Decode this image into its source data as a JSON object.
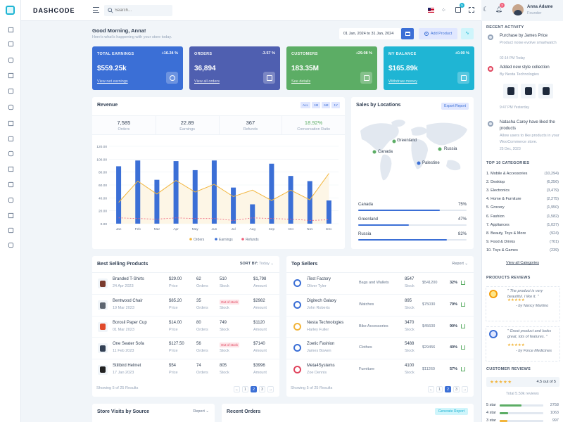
{
  "brand": {
    "logo": "DASHCODE"
  },
  "header": {
    "search_placeholder": "Search...",
    "cart_badge": "5",
    "bell_badge": "2",
    "user_name": "Anna Adame",
    "user_role": "Founder"
  },
  "greeting": {
    "title": "Good Morning, Anna!",
    "subtitle": "Here's what's happening with your store today.",
    "date_range": "01 Jan, 2024 to 31 Jan, 2024",
    "add_product": "Add Product"
  },
  "stats": [
    {
      "label": "TOTAL EARNINGS",
      "pct": "+16.24 %",
      "value": "$559.25k",
      "link": "View net earnings",
      "color": "#3b6fd6"
    },
    {
      "label": "ORDERS",
      "pct": "-3.57 %",
      "value": "36,894",
      "link": "View all orders",
      "color": "#4f5fb0"
    },
    {
      "label": "CUSTOMERS",
      "pct": "+29.08 %",
      "value": "183.35M",
      "link": "See details",
      "color": "#5cad65"
    },
    {
      "label": "MY BALANCE",
      "pct": "+0.00 %",
      "value": "$165.89k",
      "link": "Withdraw money",
      "color": "#1fb5d4"
    }
  ],
  "revenue": {
    "title": "Revenue",
    "ranges": [
      "ALL",
      "1M",
      "6M",
      "1Y"
    ],
    "summary": [
      {
        "value": "7,585",
        "label": "Orders"
      },
      {
        "value": "22.89",
        "label": "Earnings"
      },
      {
        "value": "367",
        "label": "Refunds"
      },
      {
        "value": "18.92%",
        "label": "Conversation Ratio"
      }
    ],
    "legend": [
      "Orders",
      "Earnings",
      "Refunds"
    ]
  },
  "chart_data": {
    "type": "bar",
    "categories": [
      "Jan",
      "Feb",
      "Mar",
      "Apr",
      "May",
      "Jun",
      "Jul",
      "Aug",
      "Sep",
      "Oct",
      "Nov",
      "Dec"
    ],
    "yticks": [
      "120.00",
      "100.00",
      "80.00",
      "60.00",
      "40.00",
      "20.00",
      "0.00"
    ],
    "ylim": [
      0,
      120
    ],
    "series": [
      {
        "name": "Orders",
        "type": "area",
        "values": [
          33,
          66,
          46,
          67,
          49,
          61,
          42,
          52,
          36,
          52,
          37,
          78
        ]
      },
      {
        "name": "Earnings",
        "type": "bar",
        "values": [
          89,
          98,
          68,
          97,
          83,
          98,
          56,
          30,
          93,
          74,
          66,
          36
        ]
      },
      {
        "name": "Refunds",
        "type": "line",
        "values": [
          9,
          8,
          7,
          9,
          8,
          8,
          5,
          9,
          8,
          7,
          5,
          6
        ]
      }
    ],
    "colors": {
      "Orders": "#f2b53c",
      "Earnings": "#3b6fd6",
      "Refunds": "#f0607a"
    }
  },
  "locations": {
    "title": "Sales by Locations",
    "export": "Export Report",
    "markers": [
      "Greenland",
      "Canada",
      "Russia",
      "Palestine"
    ],
    "bars": [
      {
        "name": "Canada",
        "pct": "75%",
        "value": 0.75
      },
      {
        "name": "Greenland",
        "pct": "47%",
        "value": 0.47
      },
      {
        "name": "Russia",
        "pct": "82%",
        "value": 0.82
      }
    ]
  },
  "best_selling": {
    "title": "Best Selling Products",
    "sort_label": "SORT BY:",
    "sort_value": "Today",
    "rows": [
      {
        "name": "Branded T-Shirts",
        "date": "24 Apr 2023",
        "price": "$29.00",
        "orders": "62",
        "stock": "510",
        "amount": "$1,798"
      },
      {
        "name": "Bentwood Chair",
        "date": "19 Mar 2023",
        "price": "$85.20",
        "orders": "35",
        "stock": "Out of stock",
        "amount": "$2982"
      },
      {
        "name": "Borosil Paper Cup",
        "date": "01 Mar 2023",
        "price": "$14.00",
        "orders": "80",
        "stock": "749",
        "amount": "$1120"
      },
      {
        "name": "One Seater Sofa",
        "date": "11 Feb 2023",
        "price": "$127.50",
        "orders": "56",
        "stock": "Out of stock",
        "amount": "$7140"
      },
      {
        "name": "Stillbird Helmet",
        "date": "17 Jan 2023",
        "price": "$54",
        "orders": "74",
        "stock": "805",
        "amount": "$3996"
      }
    ],
    "col_labels": {
      "price": "Price",
      "orders": "Orders",
      "stock": "Stock",
      "amount": "Amount"
    },
    "footer": "Showing 5 of 25 Results",
    "pages": [
      "←",
      "1",
      "2",
      "3",
      "→"
    ]
  },
  "top_sellers": {
    "title": "Top Sellers",
    "report": "Report",
    "rows": [
      {
        "name": "iTest Factory",
        "owner": "Oliver Tyler",
        "category": "Bags and Wallets",
        "stock": "8547",
        "amount": "$541200",
        "pct": "32%"
      },
      {
        "name": "Digitech Galaxy",
        "owner": "John Roberts",
        "category": "Watches",
        "stock": "895",
        "amount": "$75030",
        "pct": "79%"
      },
      {
        "name": "Nesta Technologies",
        "owner": "Harley Fuller",
        "category": "Bike Accessories",
        "stock": "3470",
        "amount": "$45600",
        "pct": "90%"
      },
      {
        "name": "Zoetic Fashion",
        "owner": "James Bowen",
        "category": "Clothes",
        "stock": "5488",
        "amount": "$29456",
        "pct": "40%"
      },
      {
        "name": "Meta4Systems",
        "owner": "Zoe Dennis",
        "category": "Furniture",
        "stock": "4100",
        "amount": "$11260",
        "pct": "57%"
      }
    ],
    "stock_label": "Stock",
    "footer": "Showing 5 of 25 Results",
    "pages": [
      "←",
      "1",
      "2",
      "3",
      "→"
    ]
  },
  "bottom": {
    "visits_title": "Store Visits by Source",
    "visits_report": "Report",
    "orders_title": "Recent Orders",
    "generate": "Generate Report"
  },
  "activity": {
    "title": "RECENT ACTIVITY",
    "items": [
      {
        "title": "Purchase by James Price",
        "desc": "Product noise evolve smartwatch",
        "time": "02:14 PM Today"
      },
      {
        "title": "Added new style collection",
        "desc": "By Nesta Technologies",
        "time": "9:47 PM Yesterday"
      },
      {
        "title": "Natasha Carey have liked the products",
        "desc": "Allow users to like products in your WooCommerce store.",
        "time": "25 Dec, 2023"
      }
    ]
  },
  "categories": {
    "title": "TOP 10 CATEGORIES",
    "items": [
      {
        "name": "1. Mobile & Accessories",
        "count": "(10,294)"
      },
      {
        "name": "2. Desktop",
        "count": "(6,256)"
      },
      {
        "name": "3. Electronics",
        "count": "(3,479)"
      },
      {
        "name": "4. Home & Furniture",
        "count": "(2,275)"
      },
      {
        "name": "5. Grocery",
        "count": "(1,950)"
      },
      {
        "name": "6. Fashion",
        "count": "(1,582)"
      },
      {
        "name": "7. Appliances",
        "count": "(1,037)"
      },
      {
        "name": "8. Beauty, Toys & More",
        "count": "(924)"
      },
      {
        "name": "9. Food & Drinks",
        "count": "(701)"
      },
      {
        "name": "10. Toys & Games",
        "count": "(239)"
      }
    ],
    "view_all": "View all Categories"
  },
  "reviews": {
    "title": "PRODUCTS REVIEWS",
    "items": [
      {
        "text": "\" The product is very beautiful. I like it. \"",
        "by": "- by Nancy Martino",
        "stars": "★★★★★"
      },
      {
        "text": "\" Great product and looks great, lots of features. \"",
        "by": "- by Force Medicines",
        "stars": "★★★★★"
      }
    ]
  },
  "customer_reviews": {
    "title": "CUSTOMER REVIEWS",
    "stars": "★★★★★",
    "score": "4.5 out of 5",
    "total": "Total 5.50k reviews",
    "rows": [
      {
        "label": "5 star",
        "value": "2758",
        "fill": 0.5
      },
      {
        "label": "4 star",
        "value": "1063",
        "fill": 0.2
      },
      {
        "label": "3 star",
        "value": "997",
        "fill": 0.18
      }
    ]
  }
}
